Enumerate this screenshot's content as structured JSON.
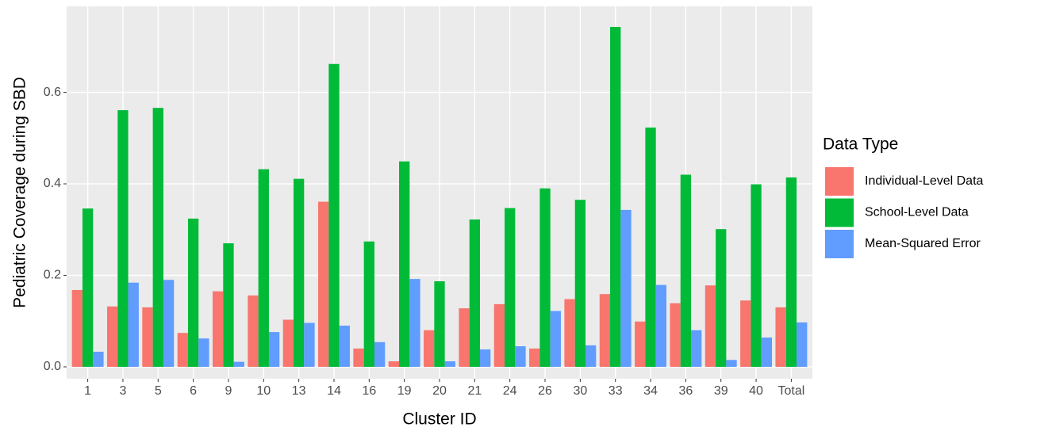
{
  "chart_data": {
    "type": "bar",
    "x_label": "Cluster ID",
    "y_label": "Pediatric Coverage during SBD",
    "legend_title": "Data Type",
    "legend_position": "right",
    "grid": true,
    "categories": [
      "1",
      "3",
      "5",
      "6",
      "9",
      "10",
      "13",
      "14",
      "16",
      "19",
      "20",
      "21",
      "24",
      "26",
      "30",
      "33",
      "34",
      "36",
      "39",
      "40",
      "Total"
    ],
    "series": [
      {
        "name": "Individual-Level Data",
        "color": "#f8766d",
        "values": [
          0.168,
          0.132,
          0.13,
          0.074,
          0.165,
          0.156,
          0.103,
          0.361,
          0.04,
          0.012,
          0.08,
          0.128,
          0.137,
          0.04,
          0.148,
          0.159,
          0.099,
          0.139,
          0.178,
          0.145,
          0.13
        ]
      },
      {
        "name": "School-Level Data",
        "color": "#00ba38",
        "values": [
          0.346,
          0.561,
          0.566,
          0.324,
          0.27,
          0.432,
          0.411,
          0.662,
          0.274,
          0.449,
          0.187,
          0.322,
          0.347,
          0.39,
          0.365,
          0.743,
          0.523,
          0.42,
          0.301,
          0.399,
          0.414
        ]
      },
      {
        "name": "Mean-Squared Error",
        "color": "#619cff",
        "values": [
          0.033,
          0.184,
          0.19,
          0.062,
          0.011,
          0.076,
          0.096,
          0.09,
          0.054,
          0.192,
          0.012,
          0.038,
          0.045,
          0.122,
          0.047,
          0.343,
          0.179,
          0.08,
          0.015,
          0.064,
          0.097
        ]
      }
    ],
    "ylim": [
      -0.026,
      0.788
    ],
    "yticks": [
      {
        "value": 0,
        "label": "0.0"
      },
      {
        "value": 0.2,
        "label": "0.2"
      },
      {
        "value": 0.4,
        "label": "0.4"
      },
      {
        "value": 0.6,
        "label": "0.6"
      }
    ]
  }
}
